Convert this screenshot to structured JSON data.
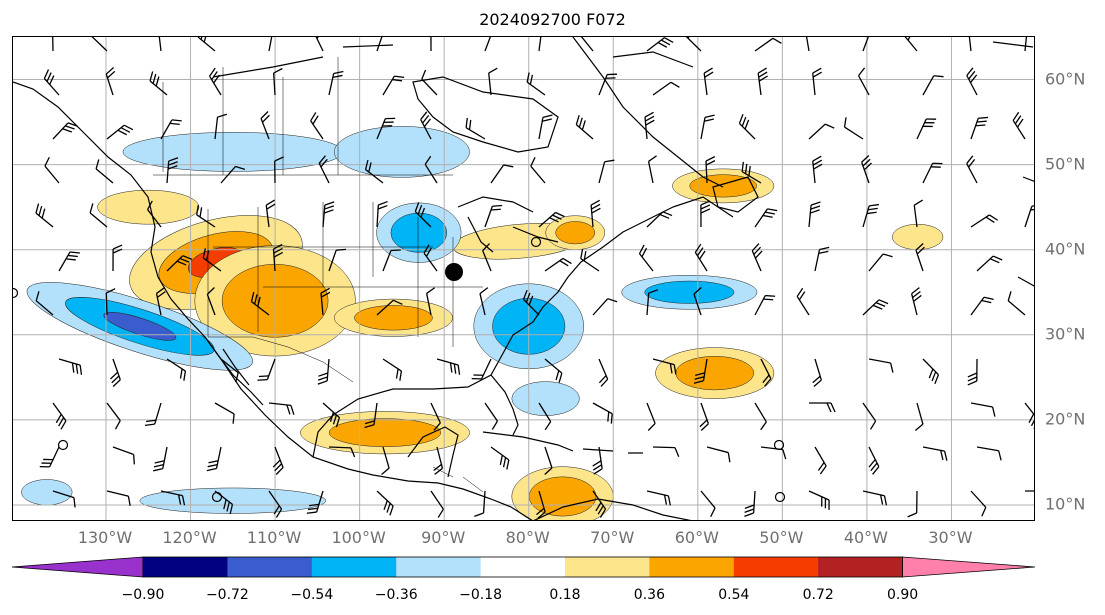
{
  "title": "2024092700 F072",
  "map": {
    "lon_labels": [
      {
        "text": "130°W",
        "lon": -130
      },
      {
        "text": "120°W",
        "lon": -120
      },
      {
        "text": "110°W",
        "lon": -110
      },
      {
        "text": "100°W",
        "lon": -100
      },
      {
        "text": "90°W",
        "lon": -90
      },
      {
        "text": "80°W",
        "lon": -80
      },
      {
        "text": "70°W",
        "lon": -70
      },
      {
        "text": "60°W",
        "lon": -60
      },
      {
        "text": "50°W",
        "lon": -50
      },
      {
        "text": "40°W",
        "lon": -40
      },
      {
        "text": "30°W",
        "lon": -30
      }
    ],
    "lat_labels": [
      {
        "text": "60°N",
        "lat": 60
      },
      {
        "text": "50°N",
        "lat": 50
      },
      {
        "text": "40°N",
        "lat": 40
      },
      {
        "text": "30°N",
        "lat": 30
      },
      {
        "text": "20°N",
        "lat": 20
      },
      {
        "text": "10°N",
        "lat": 10
      }
    ],
    "extent": {
      "lon_min": -141,
      "lon_max": -20,
      "lat_min": 8,
      "lat_max": 65
    },
    "gridline_color": "#b0b0b0",
    "coastline_color": "#000000",
    "fill_levels": [
      {
        "min": 0.18,
        "max": 0.36,
        "color": "#fde58c"
      },
      {
        "min": 0.36,
        "max": 0.54,
        "color": "#faa500"
      },
      {
        "min": 0.54,
        "max": 0.72,
        "color": "#f53d00"
      },
      {
        "min": -0.36,
        "max": -0.18,
        "color": "#b3e0fa"
      },
      {
        "min": -0.54,
        "max": -0.36,
        "color": "#00b4f5"
      },
      {
        "min": -0.72,
        "max": -0.54,
        "color": "#3a5ccc"
      }
    ],
    "anomaly_areas": [
      {
        "lon": -117,
        "lat": 38.5,
        "rx": 10.5,
        "ry": 5,
        "rot": -15,
        "levels": [
          0.18,
          0.36,
          0.54
        ]
      },
      {
        "lon": -125,
        "lat": 45,
        "rx": 6,
        "ry": 2,
        "rot": 0,
        "levels": [
          0.18
        ]
      },
      {
        "lon": -110,
        "lat": 34,
        "rx": 9.5,
        "ry": 6.5,
        "rot": 0,
        "levels": [
          0.18,
          0.36
        ]
      },
      {
        "lon": -96,
        "lat": 32,
        "rx": 7,
        "ry": 2.2,
        "rot": 0,
        "levels": [
          0.18,
          0.36
        ]
      },
      {
        "lon": -81,
        "lat": 41,
        "rx": 8,
        "ry": 2,
        "rot": -5,
        "levels": [
          0.18
        ]
      },
      {
        "lon": -74.5,
        "lat": 42,
        "rx": 3.5,
        "ry": 2,
        "rot": 0,
        "levels": [
          0.18,
          0.36
        ]
      },
      {
        "lon": -57,
        "lat": 47.5,
        "rx": 6,
        "ry": 2,
        "rot": 0,
        "levels": [
          0.18,
          0.36
        ]
      },
      {
        "lon": -58,
        "lat": 25.5,
        "rx": 7,
        "ry": 3,
        "rot": 0,
        "levels": [
          0.18,
          0.36
        ]
      },
      {
        "lon": -34,
        "lat": 41.5,
        "rx": 3,
        "ry": 1.5,
        "rot": 0,
        "levels": [
          0.18
        ]
      },
      {
        "lon": -97,
        "lat": 18.5,
        "rx": 10,
        "ry": 2.5,
        "rot": 0,
        "levels": [
          0.18,
          0.36
        ]
      },
      {
        "lon": -76,
        "lat": 11,
        "rx": 6,
        "ry": 3.5,
        "rot": 0,
        "levels": [
          0.18,
          0.36
        ]
      },
      {
        "lon": -126,
        "lat": 31,
        "rx": 14,
        "ry": 3,
        "rot": 18,
        "levels": [
          -0.18,
          -0.36,
          -0.54
        ]
      },
      {
        "lon": -115,
        "lat": 51.5,
        "rx": 13,
        "ry": 2.3,
        "rot": 0,
        "levels": [
          -0.18
        ]
      },
      {
        "lon": -95,
        "lat": 51.5,
        "rx": 8,
        "ry": 3,
        "rot": 0,
        "levels": [
          -0.18
        ]
      },
      {
        "lon": -93,
        "lat": 42,
        "rx": 5,
        "ry": 3.5,
        "rot": 0,
        "levels": [
          -0.18,
          -0.36
        ]
      },
      {
        "lon": -80,
        "lat": 31,
        "rx": 6.5,
        "ry": 5,
        "rot": 0,
        "levels": [
          -0.18,
          -0.36
        ]
      },
      {
        "lon": -78,
        "lat": 22.5,
        "rx": 4,
        "ry": 2,
        "rot": 0,
        "levels": [
          -0.18
        ]
      },
      {
        "lon": -61,
        "lat": 35,
        "rx": 8,
        "ry": 2,
        "rot": 0,
        "levels": [
          -0.18,
          -0.36
        ]
      },
      {
        "lon": -115,
        "lat": 10.5,
        "rx": 11,
        "ry": 1.5,
        "rot": 0,
        "levels": [
          -0.18
        ]
      },
      {
        "lon": -137,
        "lat": 11.5,
        "rx": 3,
        "ry": 1.5,
        "rot": 0,
        "levels": [
          -0.18
        ]
      }
    ]
  },
  "colorbar": {
    "colors": [
      "#9932cc",
      "#000080",
      "#3a5ccc",
      "#00b4f5",
      "#b3e0fa",
      "#ffffff",
      "#fde58c",
      "#faa500",
      "#f53d00",
      "#b22222",
      "#ff80ab"
    ],
    "extend_min_color": "#9932cc",
    "extend_max_color": "#ff80ab",
    "tick_labels": [
      "−0.90",
      "−0.72",
      "−0.54",
      "−0.36",
      "−0.18",
      "0.18",
      "0.36",
      "0.54",
      "0.72",
      "0.90"
    ]
  }
}
